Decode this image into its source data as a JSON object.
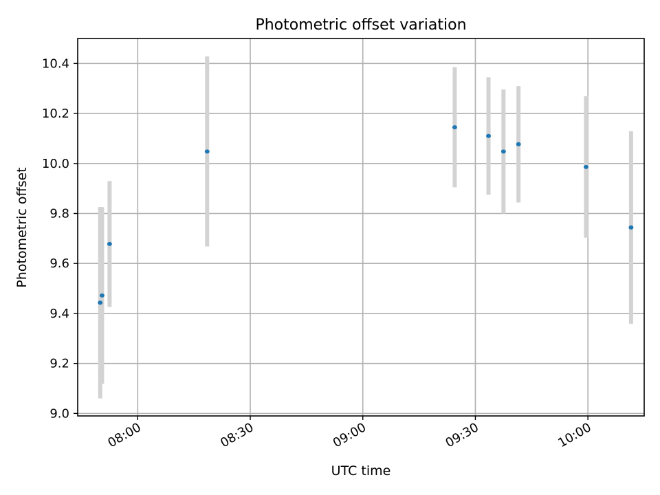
{
  "chart_data": {
    "type": "scatter",
    "title": "Photometric offset variation",
    "xlabel": "UTC time",
    "ylabel": "Photometric offset",
    "x_axis_type": "time",
    "xlim": [
      "07:44",
      "10:15"
    ],
    "ylim": [
      8.99,
      10.5
    ],
    "xticks": [
      "08:00",
      "08:30",
      "09:00",
      "09:30",
      "10:00"
    ],
    "yticks": [
      "9.0",
      "9.2",
      "9.4",
      "9.6",
      "9.8",
      "10.0",
      "10.2",
      "10.4"
    ],
    "grid": true,
    "legend": "none",
    "series": [
      {
        "marker_color": "#1f77b4",
        "errorbar_color": "#d3d3d3",
        "points": [
          {
            "x": "07:50:00",
            "y": 9.443,
            "err": 0.383
          },
          {
            "x": "07:50:30",
            "y": 9.472,
            "err": 0.353
          },
          {
            "x": "07:52:30",
            "y": 9.678,
            "err": 0.252
          },
          {
            "x": "08:18:30",
            "y": 10.048,
            "err": 0.38
          },
          {
            "x": "09:24:30",
            "y": 10.145,
            "err": 0.24
          },
          {
            "x": "09:33:30",
            "y": 10.11,
            "err": 0.235
          },
          {
            "x": "09:37:30",
            "y": 10.048,
            "err": 0.248
          },
          {
            "x": "09:41:30",
            "y": 10.077,
            "err": 0.233
          },
          {
            "x": "09:59:30",
            "y": 9.986,
            "err": 0.283
          },
          {
            "x": "10:11:30",
            "y": 9.744,
            "err": 0.385
          }
        ]
      }
    ]
  }
}
